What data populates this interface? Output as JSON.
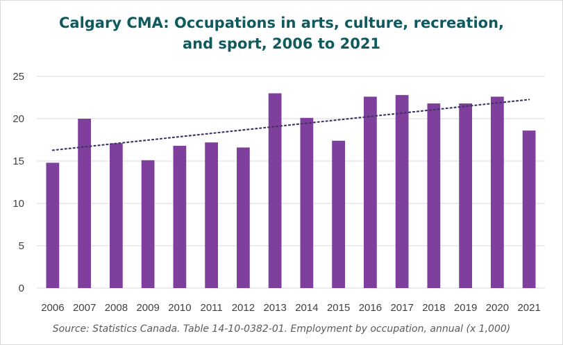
{
  "title_lines": [
    "Calgary CMA: Occupations in arts, culture, recreation,",
    "and sport, 2006 to 2021"
  ],
  "source": "Source: Statistics Canada. Table 14-10-0382-01. Employment by occupation, annual (x 1,000)",
  "colors": {
    "bar": "#7e3f9d",
    "trend": "#3f3565",
    "grid": "#d9d9d9",
    "title": "#0f5a5e",
    "tick": "#404040"
  },
  "chart_data": {
    "type": "bar",
    "title": "Calgary CMA: Occupations in arts, culture, recreation, and sport, 2006 to 2021",
    "categories": [
      "2006",
      "2007",
      "2008",
      "2009",
      "2010",
      "2011",
      "2012",
      "2013",
      "2014",
      "2015",
      "2016",
      "2017",
      "2018",
      "2019",
      "2020",
      "2021"
    ],
    "values": [
      14.8,
      20.0,
      17.1,
      15.1,
      16.8,
      17.2,
      16.6,
      23.0,
      20.1,
      17.4,
      22.6,
      22.8,
      21.8,
      21.8,
      22.6,
      18.6
    ],
    "ylim": [
      0,
      25
    ],
    "yticks": [
      0,
      5,
      10,
      15,
      20,
      25
    ],
    "trendline": "linear",
    "grid": true,
    "legend": "none"
  }
}
